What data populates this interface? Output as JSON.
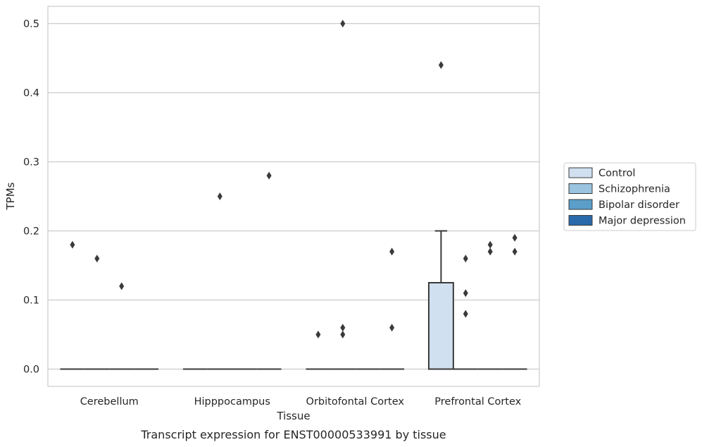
{
  "chart_data": {
    "type": "box",
    "caption": "Transcript expression for ENST00000533991 by tissue",
    "xlabel": "Tissue",
    "ylabel": "TPMs",
    "ylim": [
      -0.025,
      0.525
    ],
    "yticks": [
      0.0,
      0.1,
      0.2,
      0.3,
      0.4,
      0.5
    ],
    "ytick_labels": [
      "0.0",
      "0.1",
      "0.2",
      "0.3",
      "0.4",
      "0.5"
    ],
    "grid": "horizontal",
    "legend_position": "right",
    "categories": [
      "Cerebellum",
      "Hipppocampus",
      "Orbitofontal Cortex",
      "Prefrontal Cortex"
    ],
    "series": [
      {
        "name": "Control",
        "color": "#d0e0f0",
        "boxes": [
          {
            "q1": 0,
            "median": 0,
            "q3": 0,
            "whisker_low": 0,
            "whisker_high": 0,
            "outliers": [
              0.18
            ]
          },
          {
            "q1": 0,
            "median": 0,
            "q3": 0,
            "whisker_low": 0,
            "whisker_high": 0,
            "outliers": []
          },
          {
            "q1": 0,
            "median": 0,
            "q3": 0,
            "whisker_low": 0,
            "whisker_high": 0,
            "outliers": [
              0.05
            ]
          },
          {
            "q1": 0,
            "median": 0,
            "q3": 0.125,
            "whisker_low": 0,
            "whisker_high": 0.2,
            "outliers": [
              0.44
            ]
          }
        ]
      },
      {
        "name": "Schizophrenia",
        "color": "#9ac4df",
        "boxes": [
          {
            "q1": 0,
            "median": 0,
            "q3": 0,
            "whisker_low": 0,
            "whisker_high": 0,
            "outliers": [
              0.16
            ]
          },
          {
            "q1": 0,
            "median": 0,
            "q3": 0,
            "whisker_low": 0,
            "whisker_high": 0,
            "outliers": [
              0.25
            ]
          },
          {
            "q1": 0,
            "median": 0,
            "q3": 0,
            "whisker_low": 0,
            "whisker_high": 0,
            "outliers": [
              0.5,
              0.06,
              0.05
            ]
          },
          {
            "q1": 0,
            "median": 0,
            "q3": 0,
            "whisker_low": 0,
            "whisker_high": 0,
            "outliers": [
              0.16,
              0.11,
              0.08
            ]
          }
        ]
      },
      {
        "name": "Bipolar disorder",
        "color": "#5a9ec9",
        "boxes": [
          {
            "q1": 0,
            "median": 0,
            "q3": 0,
            "whisker_low": 0,
            "whisker_high": 0,
            "outliers": [
              0.12
            ]
          },
          {
            "q1": 0,
            "median": 0,
            "q3": 0,
            "whisker_low": 0,
            "whisker_high": 0,
            "outliers": []
          },
          {
            "q1": 0,
            "median": 0,
            "q3": 0,
            "whisker_low": 0,
            "whisker_high": 0,
            "outliers": []
          },
          {
            "q1": 0,
            "median": 0,
            "q3": 0,
            "whisker_low": 0,
            "whisker_high": 0,
            "outliers": [
              0.18,
              0.17
            ]
          }
        ]
      },
      {
        "name": "Major depression",
        "color": "#2b6aaa",
        "boxes": [
          {
            "q1": 0,
            "median": 0,
            "q3": 0,
            "whisker_low": 0,
            "whisker_high": 0,
            "outliers": []
          },
          {
            "q1": 0,
            "median": 0,
            "q3": 0,
            "whisker_low": 0,
            "whisker_high": 0,
            "outliers": [
              0.28
            ]
          },
          {
            "q1": 0,
            "median": 0,
            "q3": 0,
            "whisker_low": 0,
            "whisker_high": 0,
            "outliers": [
              0.17,
              0.06
            ]
          },
          {
            "q1": 0,
            "median": 0,
            "q3": 0,
            "whisker_low": 0,
            "whisker_high": 0,
            "outliers": [
              0.19,
              0.17
            ]
          }
        ]
      }
    ]
  }
}
